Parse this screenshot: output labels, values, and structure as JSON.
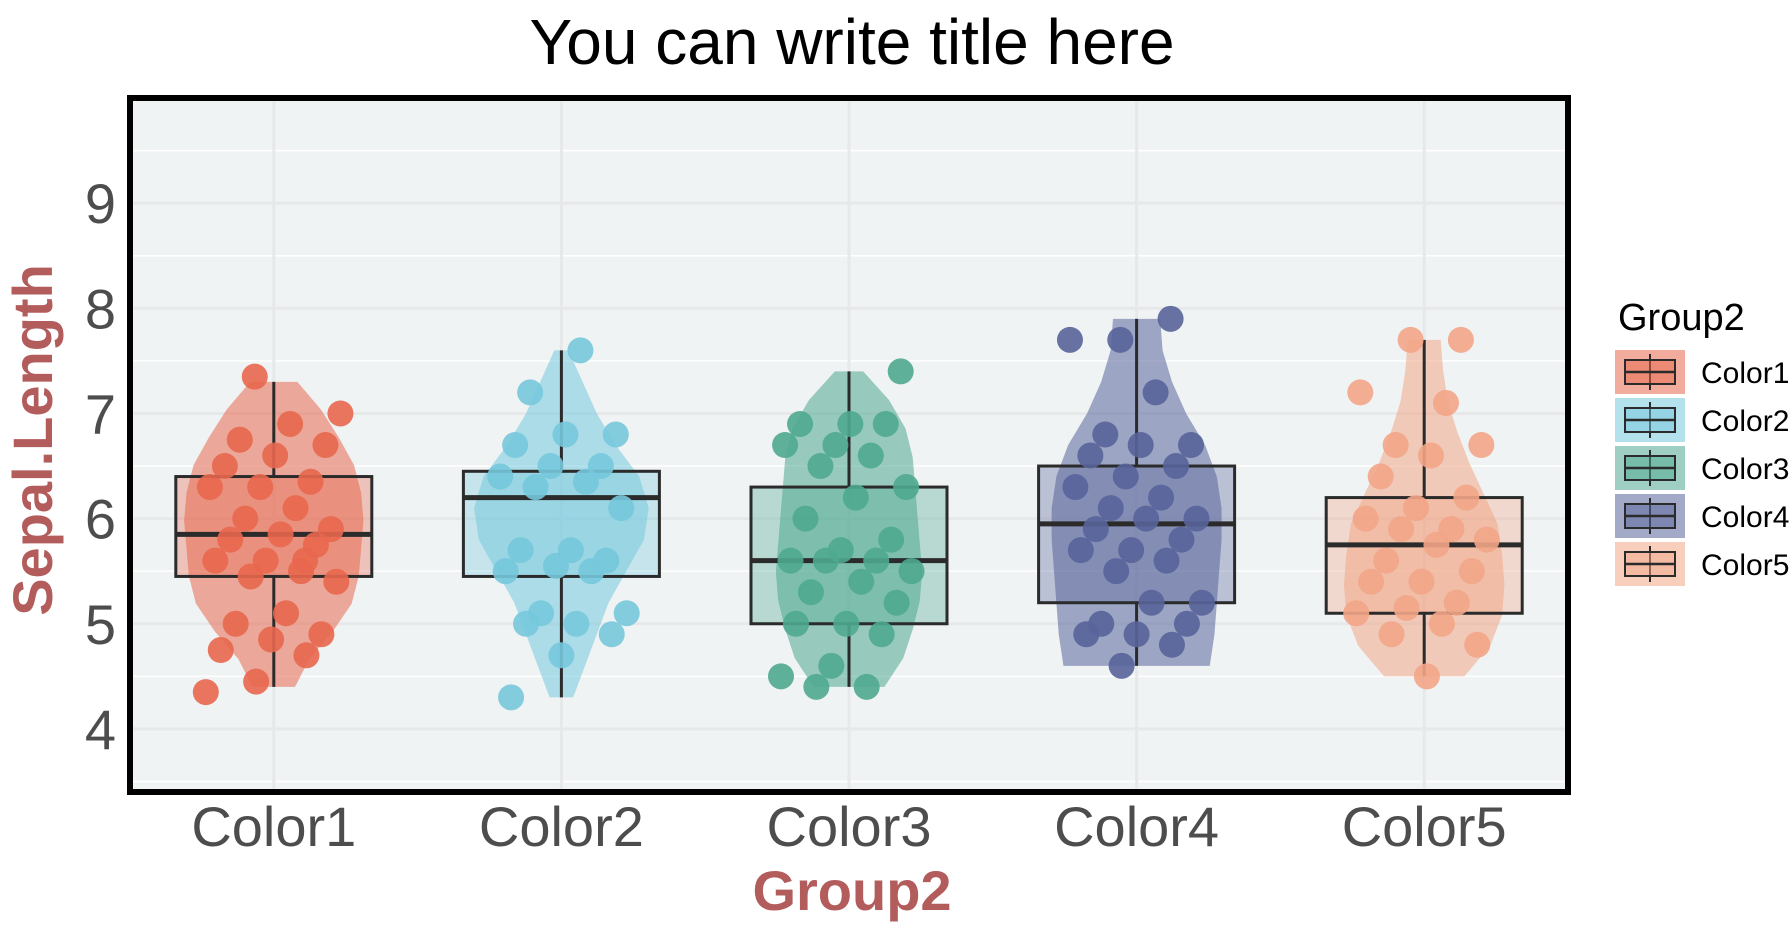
{
  "chart_data": {
    "type": "violin-box-jitter",
    "title": "You can write title here",
    "xlabel": "Group2",
    "ylabel": "Sepal.Length",
    "ylim": [
      3.4,
      10.0
    ],
    "yticks": [
      4,
      5,
      6,
      7,
      8,
      9
    ],
    "grid": true,
    "legend_title": "Group2",
    "legend_position": "right",
    "axis_title_color": "#b35c5c",
    "panel_background": "#f0f3f4",
    "categories": [
      "Color1",
      "Color2",
      "Color3",
      "Color4",
      "Color5"
    ],
    "colors": [
      "#e8674e",
      "#75c8dc",
      "#4fa88f",
      "#58649a",
      "#f2a587"
    ],
    "groups": [
      {
        "name": "Color1",
        "box": {
          "whisker_low": 4.4,
          "q1": 5.45,
          "median": 5.85,
          "q3": 6.4,
          "whisker_high": 7.3
        },
        "violin": {
          "min": 4.4,
          "max": 7.3,
          "widths": [
            0.18,
            0.3,
            0.5,
            0.66,
            0.72,
            0.74,
            0.76,
            0.74,
            0.68,
            0.55,
            0.4,
            0.2
          ]
        },
        "points": [
          4.35,
          4.45,
          4.7,
          4.75,
          4.85,
          4.9,
          5.0,
          5.1,
          5.4,
          5.45,
          5.5,
          5.6,
          5.6,
          5.75,
          5.8,
          5.85,
          5.9,
          6.0,
          6.1,
          6.3,
          6.3,
          6.35,
          6.5,
          6.6,
          6.7,
          6.75,
          6.9,
          7.0,
          7.35,
          5.6
        ]
      },
      {
        "name": "Color2",
        "box": {
          "whisker_low": 4.3,
          "q1": 5.45,
          "median": 6.2,
          "q3": 6.45,
          "whisker_high": 7.6
        },
        "violin": {
          "min": 4.3,
          "max": 7.6,
          "widths": [
            0.1,
            0.2,
            0.3,
            0.4,
            0.55,
            0.7,
            0.74,
            0.66,
            0.46,
            0.3,
            0.18,
            0.06
          ]
        },
        "points": [
          4.3,
          4.7,
          4.9,
          5.0,
          5.0,
          5.1,
          5.1,
          5.5,
          5.5,
          5.55,
          5.6,
          5.7,
          5.7,
          6.1,
          6.3,
          6.35,
          6.4,
          6.5,
          6.5,
          6.7,
          6.8,
          6.8,
          7.2,
          7.6
        ]
      },
      {
        "name": "Color3",
        "box": {
          "whisker_low": 4.4,
          "q1": 5.0,
          "median": 5.6,
          "q3": 6.3,
          "whisker_high": 7.4
        },
        "violin": {
          "min": 4.4,
          "max": 7.4,
          "widths": [
            0.3,
            0.46,
            0.54,
            0.6,
            0.62,
            0.6,
            0.58,
            0.56,
            0.54,
            0.48,
            0.34,
            0.12
          ]
        },
        "points": [
          4.4,
          4.4,
          4.5,
          4.6,
          4.9,
          5.0,
          5.0,
          5.2,
          5.3,
          5.4,
          5.5,
          5.6,
          5.6,
          5.6,
          5.7,
          5.8,
          6.0,
          6.2,
          6.3,
          6.5,
          6.6,
          6.7,
          6.7,
          6.9,
          6.9,
          6.9,
          7.4
        ]
      },
      {
        "name": "Color4",
        "box": {
          "whisker_low": 4.6,
          "q1": 5.2,
          "median": 5.95,
          "q3": 6.5,
          "whisker_high": 7.9
        },
        "violin": {
          "min": 4.6,
          "max": 7.9,
          "widths": [
            0.62,
            0.66,
            0.68,
            0.7,
            0.72,
            0.72,
            0.68,
            0.58,
            0.42,
            0.3,
            0.22,
            0.2
          ]
        },
        "points": [
          4.6,
          4.8,
          4.9,
          4.9,
          5.0,
          5.0,
          5.2,
          5.2,
          5.5,
          5.6,
          5.7,
          5.7,
          5.8,
          5.9,
          6.0,
          6.0,
          6.1,
          6.2,
          6.3,
          6.4,
          6.5,
          6.6,
          6.7,
          6.7,
          6.8,
          7.2,
          7.7,
          7.7,
          7.9
        ]
      },
      {
        "name": "Color5",
        "box": {
          "whisker_low": 4.5,
          "q1": 5.1,
          "median": 5.75,
          "q3": 6.2,
          "whisker_high": 7.7
        },
        "violin": {
          "min": 4.5,
          "max": 7.7,
          "widths": [
            0.34,
            0.56,
            0.66,
            0.68,
            0.66,
            0.62,
            0.5,
            0.38,
            0.28,
            0.2,
            0.16,
            0.14
          ]
        },
        "points": [
          4.5,
          4.8,
          4.9,
          5.0,
          5.1,
          5.15,
          5.2,
          5.4,
          5.4,
          5.5,
          5.6,
          5.75,
          5.8,
          5.9,
          5.9,
          6.0,
          6.1,
          6.2,
          6.4,
          6.6,
          6.7,
          6.7,
          7.1,
          7.2,
          7.7,
          7.7
        ]
      }
    ]
  }
}
